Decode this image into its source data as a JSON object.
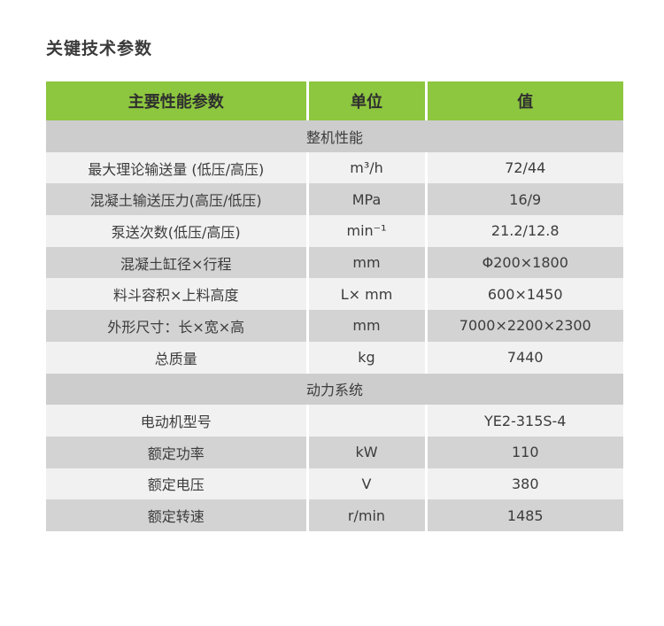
{
  "title": "关键技术参数",
  "table": {
    "headers": [
      "主要性能参数",
      "单位",
      "值"
    ],
    "sections": [
      {
        "name": "整机性能",
        "rows": [
          {
            "param": "最大理论输送量 (低压/高压)",
            "unit": "m³/h",
            "value": "72/44"
          },
          {
            "param": "混凝土输送压力(高压/低压)",
            "unit": "MPa",
            "value": "16/9"
          },
          {
            "param": "泵送次数(低压/高压)",
            "unit": "min⁻¹",
            "value": "21.2/12.8"
          },
          {
            "param": "混凝土缸径×行程",
            "unit": "mm",
            "value": "Φ200×1800"
          },
          {
            "param": "料斗容积×上料高度",
            "unit": "L× mm",
            "value": "600×1450"
          },
          {
            "param": "外形尺寸：长×宽×高",
            "unit": "mm",
            "value": "7000×2200×2300"
          },
          {
            "param": "总质量",
            "unit": "kg",
            "value": "7440"
          }
        ]
      },
      {
        "name": "动力系统",
        "rows": [
          {
            "param": "电动机型号",
            "unit": "",
            "value": "YE2-315S-4"
          },
          {
            "param": "额定功率",
            "unit": "kW",
            "value": "110"
          },
          {
            "param": "额定电压",
            "unit": "V",
            "value": "380"
          },
          {
            "param": "额定转速",
            "unit": "r/min",
            "value": "1485"
          }
        ]
      }
    ]
  },
  "colors": {
    "header_bg": "#8dc63f",
    "row_light": "#f1f1f1",
    "row_gray": "#d3d3d3",
    "section_bg": "#cdcdcd"
  }
}
